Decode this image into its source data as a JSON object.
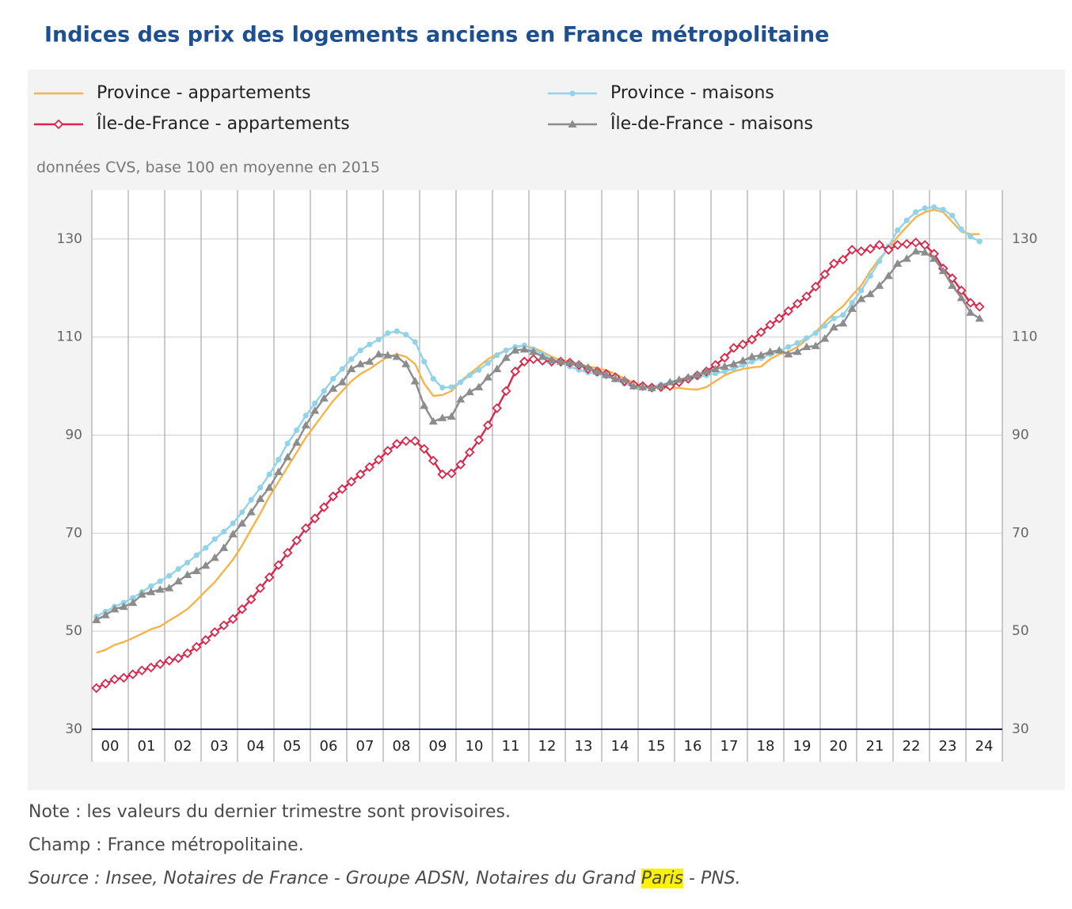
{
  "chart_data": {
    "type": "line",
    "title": "Indices des prix des logements anciens en France métropolitaine",
    "subtitle": "données CVS, base 100 en moyenne en 2015",
    "legend": "top",
    "grid": true,
    "xlim": [
      2000,
      2025
    ],
    "xticks": [
      {
        "value": 2000.5,
        "label": "00"
      },
      {
        "value": 2001.5,
        "label": "01"
      },
      {
        "value": 2002.5,
        "label": "02"
      },
      {
        "value": 2003.5,
        "label": "03"
      },
      {
        "value": 2004.5,
        "label": "04"
      },
      {
        "value": 2005.5,
        "label": "05"
      },
      {
        "value": 2006.5,
        "label": "06"
      },
      {
        "value": 2007.5,
        "label": "07"
      },
      {
        "value": 2008.5,
        "label": "08"
      },
      {
        "value": 2009.5,
        "label": "09"
      },
      {
        "value": 2010.5,
        "label": "10"
      },
      {
        "value": 2011.5,
        "label": "11"
      },
      {
        "value": 2012.5,
        "label": "12"
      },
      {
        "value": 2013.5,
        "label": "13"
      },
      {
        "value": 2014.5,
        "label": "14"
      },
      {
        "value": 2015.5,
        "label": "15"
      },
      {
        "value": 2016.5,
        "label": "16"
      },
      {
        "value": 2017.5,
        "label": "17"
      },
      {
        "value": 2018.5,
        "label": "18"
      },
      {
        "value": 2019.5,
        "label": "19"
      },
      {
        "value": 2020.5,
        "label": "20"
      },
      {
        "value": 2021.5,
        "label": "21"
      },
      {
        "value": 2022.5,
        "label": "22"
      },
      {
        "value": 2023.5,
        "label": "23"
      },
      {
        "value": 2024.5,
        "label": "24"
      }
    ],
    "ylim": [
      30,
      140
    ],
    "yticks": [
      30,
      50,
      70,
      90,
      110,
      130
    ],
    "x": [
      2000.125,
      2000.375,
      2000.625,
      2000.875,
      2001.125,
      2001.375,
      2001.625,
      2001.875,
      2002.125,
      2002.375,
      2002.625,
      2002.875,
      2003.125,
      2003.375,
      2003.625,
      2003.875,
      2004.125,
      2004.375,
      2004.625,
      2004.875,
      2005.125,
      2005.375,
      2005.625,
      2005.875,
      2006.125,
      2006.375,
      2006.625,
      2006.875,
      2007.125,
      2007.375,
      2007.625,
      2007.875,
      2008.125,
      2008.375,
      2008.625,
      2008.875,
      2009.125,
      2009.375,
      2009.625,
      2009.875,
      2010.125,
      2010.375,
      2010.625,
      2010.875,
      2011.125,
      2011.375,
      2011.625,
      2011.875,
      2012.125,
      2012.375,
      2012.625,
      2012.875,
      2013.125,
      2013.375,
      2013.625,
      2013.875,
      2014.125,
      2014.375,
      2014.625,
      2014.875,
      2015.125,
      2015.375,
      2015.625,
      2015.875,
      2016.125,
      2016.375,
      2016.625,
      2016.875,
      2017.125,
      2017.375,
      2017.625,
      2017.875,
      2018.125,
      2018.375,
      2018.625,
      2018.875,
      2019.125,
      2019.375,
      2019.625,
      2019.875,
      2020.125,
      2020.375,
      2020.625,
      2020.875,
      2021.125,
      2021.375,
      2021.625,
      2021.875,
      2022.125,
      2022.375,
      2022.625,
      2022.875,
      2023.125,
      2023.375,
      2023.625,
      2023.875,
      2024.125,
      2024.375
    ],
    "series": [
      {
        "name": "Province - appartements",
        "color": "#f5b449",
        "marker": "none",
        "values": [
          45.6,
          46.2,
          47.2,
          47.8,
          48.6,
          49.5,
          50.4,
          51.0,
          52.2,
          53.3,
          54.5,
          56.3,
          58.2,
          60.0,
          62.3,
          64.6,
          67.5,
          70.8,
          74.0,
          77.5,
          80.5,
          83.5,
          86.5,
          89.5,
          92.0,
          94.5,
          97.0,
          99.0,
          101.0,
          102.5,
          103.5,
          104.8,
          106.0,
          106.5,
          106.0,
          104.5,
          100.5,
          98.0,
          98.2,
          99.0,
          101.0,
          102.5,
          104.0,
          105.5,
          106.5,
          107.3,
          108.0,
          108.2,
          107.8,
          107.0,
          106.0,
          105.3,
          105.0,
          104.5,
          104.0,
          103.7,
          103.2,
          102.5,
          101.5,
          100.8,
          100.2,
          99.8,
          99.7,
          99.6,
          99.6,
          99.4,
          99.3,
          99.8,
          101.0,
          102.2,
          103.0,
          103.5,
          103.8,
          104.0,
          105.5,
          106.5,
          107.0,
          108.0,
          109.5,
          111.0,
          113.0,
          114.8,
          116.3,
          118.5,
          120.5,
          123.5,
          126.0,
          128.0,
          130.5,
          132.5,
          134.5,
          135.5,
          136.0,
          135.5,
          133.5,
          131.5,
          131.0,
          131.0
        ]
      },
      {
        "name": "Province - maisons",
        "color": "#92d3ea",
        "marker": "circle",
        "values": [
          53.0,
          54.0,
          55.0,
          55.8,
          56.8,
          58.0,
          59.2,
          60.2,
          61.3,
          62.7,
          64.0,
          65.5,
          67.0,
          68.8,
          70.3,
          72.0,
          74.3,
          76.8,
          79.3,
          82.0,
          85.0,
          88.3,
          91.0,
          94.0,
          96.5,
          99.0,
          101.5,
          103.5,
          105.5,
          107.3,
          108.5,
          109.5,
          110.8,
          111.2,
          110.5,
          109.0,
          105.0,
          101.5,
          99.7,
          99.8,
          100.8,
          102.2,
          103.3,
          104.7,
          106.3,
          107.3,
          108.0,
          108.3,
          107.5,
          106.5,
          105.5,
          104.8,
          104.0,
          103.3,
          102.8,
          102.5,
          102.0,
          101.3,
          100.5,
          99.8,
          99.7,
          99.9,
          100.3,
          100.7,
          101.0,
          101.3,
          101.8,
          102.2,
          102.6,
          103.0,
          103.6,
          104.3,
          105.0,
          105.7,
          106.5,
          107.2,
          108.0,
          108.8,
          109.8,
          110.8,
          112.3,
          113.8,
          114.5,
          117.0,
          119.5,
          122.5,
          125.5,
          128.5,
          131.8,
          133.8,
          135.5,
          136.3,
          136.5,
          136.0,
          134.8,
          132.0,
          130.5,
          129.5
        ]
      },
      {
        "name": "Île-de-France - appartements",
        "color": "#d9264a",
        "marker": "diamond",
        "values": [
          38.4,
          39.3,
          40.2,
          40.5,
          41.2,
          42.0,
          42.6,
          43.3,
          44.0,
          44.5,
          45.5,
          46.8,
          48.2,
          49.8,
          51.2,
          52.5,
          54.5,
          56.5,
          58.8,
          61.0,
          63.5,
          66.0,
          68.5,
          71.0,
          73.0,
          75.3,
          77.5,
          79.0,
          80.5,
          82.0,
          83.5,
          85.0,
          86.8,
          88.2,
          88.8,
          88.8,
          87.2,
          84.8,
          82.0,
          82.2,
          84.0,
          86.5,
          89.0,
          92.0,
          95.5,
          99.0,
          103.0,
          105.0,
          105.5,
          105.2,
          105.0,
          105.0,
          104.8,
          104.3,
          103.5,
          103.0,
          102.5,
          101.8,
          101.0,
          100.3,
          100.0,
          99.7,
          99.8,
          100.0,
          100.8,
          101.5,
          102.2,
          103.0,
          104.3,
          105.8,
          107.8,
          108.5,
          109.5,
          111.0,
          112.5,
          113.8,
          115.3,
          116.8,
          118.3,
          120.3,
          122.8,
          125.0,
          125.8,
          127.8,
          127.5,
          128.0,
          128.8,
          127.8,
          128.8,
          129.0,
          129.3,
          128.8,
          127.0,
          124.0,
          122.0,
          119.5,
          117.0,
          116.2
        ]
      },
      {
        "name": "Île-de-France - maisons",
        "color": "#8c8c8c",
        "marker": "triangle",
        "values": [
          52.3,
          53.3,
          54.5,
          55.0,
          55.8,
          57.5,
          58.0,
          58.5,
          58.8,
          60.2,
          61.5,
          62.3,
          63.4,
          65.0,
          67.0,
          69.8,
          72.0,
          74.3,
          77.0,
          79.3,
          82.5,
          85.5,
          88.5,
          92.0,
          95.0,
          97.5,
          99.5,
          100.8,
          103.5,
          104.5,
          105.0,
          106.5,
          106.3,
          106.0,
          104.5,
          101.0,
          96.0,
          92.8,
          93.5,
          93.8,
          97.3,
          98.8,
          99.8,
          101.8,
          103.5,
          105.8,
          107.3,
          107.5,
          107.0,
          106.0,
          105.3,
          105.0,
          104.8,
          104.5,
          103.8,
          103.0,
          102.3,
          101.5,
          101.3,
          100.0,
          99.8,
          99.6,
          100.0,
          100.8,
          101.3,
          101.8,
          102.3,
          103.0,
          103.5,
          104.0,
          104.5,
          105.2,
          106.0,
          106.3,
          107.0,
          107.3,
          106.5,
          107.0,
          108.0,
          108.2,
          109.7,
          112.0,
          112.8,
          115.8,
          117.8,
          118.8,
          120.5,
          122.5,
          125.0,
          126.0,
          127.5,
          127.3,
          126.0,
          123.5,
          120.5,
          118.0,
          115.0,
          113.8
        ]
      }
    ]
  },
  "notes": [
    "Note : les valeurs du dernier trimestre sont provisoires.",
    "Champ : France métropolitaine."
  ],
  "source": [
    "Source : Insee, Notaires de France - Groupe ADSN, Notaires du Grand ",
    "Paris",
    " - PNS."
  ]
}
